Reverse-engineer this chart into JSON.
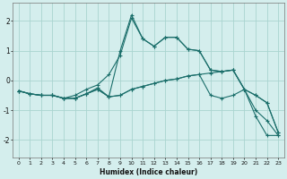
{
  "xlabel": "Humidex (Indice chaleur)",
  "xlim": [
    -0.5,
    23.5
  ],
  "ylim": [
    -2.6,
    2.6
  ],
  "yticks": [
    -2,
    -1,
    0,
    1,
    2
  ],
  "xticks": [
    0,
    1,
    2,
    3,
    4,
    5,
    6,
    7,
    8,
    9,
    10,
    11,
    12,
    13,
    14,
    15,
    16,
    17,
    18,
    19,
    20,
    21,
    22,
    23
  ],
  "bg_color": "#d4eeed",
  "line_color": "#1a6e6a",
  "grid_color": "#aad4d0",
  "lines": [
    {
      "x": [
        0,
        1,
        2,
        3,
        4,
        5,
        6,
        7,
        8,
        9,
        10,
        11,
        12,
        13,
        14,
        15,
        16,
        17,
        18,
        19,
        20,
        21,
        22,
        23
      ],
      "y": [
        -0.35,
        -0.45,
        -0.5,
        -0.5,
        -0.6,
        -0.6,
        -0.45,
        -0.25,
        -0.55,
        1.0,
        2.2,
        1.4,
        1.15,
        1.45,
        1.45,
        1.05,
        1.0,
        0.35,
        0.3,
        0.35,
        -0.3,
        -1.2,
        -1.85,
        -1.85
      ]
    },
    {
      "x": [
        0,
        1,
        2,
        3,
        4,
        5,
        6,
        7,
        8,
        9,
        10,
        11,
        12,
        13,
        14,
        15,
        16,
        17,
        18,
        19,
        20,
        21,
        22,
        23
      ],
      "y": [
        -0.35,
        -0.45,
        -0.5,
        -0.5,
        -0.6,
        -0.6,
        -0.45,
        -0.3,
        -0.55,
        -0.5,
        -0.3,
        -0.2,
        -0.1,
        0.0,
        0.05,
        0.15,
        0.2,
        0.25,
        0.3,
        0.35,
        -0.3,
        -0.5,
        -0.75,
        -1.75
      ]
    },
    {
      "x": [
        0,
        1,
        2,
        3,
        4,
        5,
        6,
        7,
        8,
        9,
        10,
        11,
        12,
        13,
        14,
        15,
        16,
        17,
        18,
        19,
        20,
        21,
        22,
        23
      ],
      "y": [
        -0.35,
        -0.45,
        -0.5,
        -0.5,
        -0.6,
        -0.6,
        -0.45,
        -0.3,
        -0.55,
        -0.5,
        -0.3,
        -0.2,
        -0.1,
        0.0,
        0.05,
        0.15,
        0.2,
        -0.5,
        -0.6,
        -0.5,
        -0.3,
        -1.0,
        -1.35,
        -1.85
      ]
    },
    {
      "x": [
        0,
        1,
        2,
        3,
        4,
        5,
        6,
        7,
        8,
        9,
        10,
        11,
        12,
        13,
        14,
        15,
        16,
        17,
        18,
        19,
        20,
        21,
        22,
        23
      ],
      "y": [
        -0.35,
        -0.45,
        -0.5,
        -0.5,
        -0.6,
        -0.5,
        -0.3,
        -0.15,
        0.2,
        0.85,
        2.1,
        1.4,
        1.15,
        1.45,
        1.45,
        1.05,
        1.0,
        0.35,
        0.3,
        0.35,
        -0.3,
        -0.5,
        -0.75,
        -1.75
      ]
    }
  ]
}
